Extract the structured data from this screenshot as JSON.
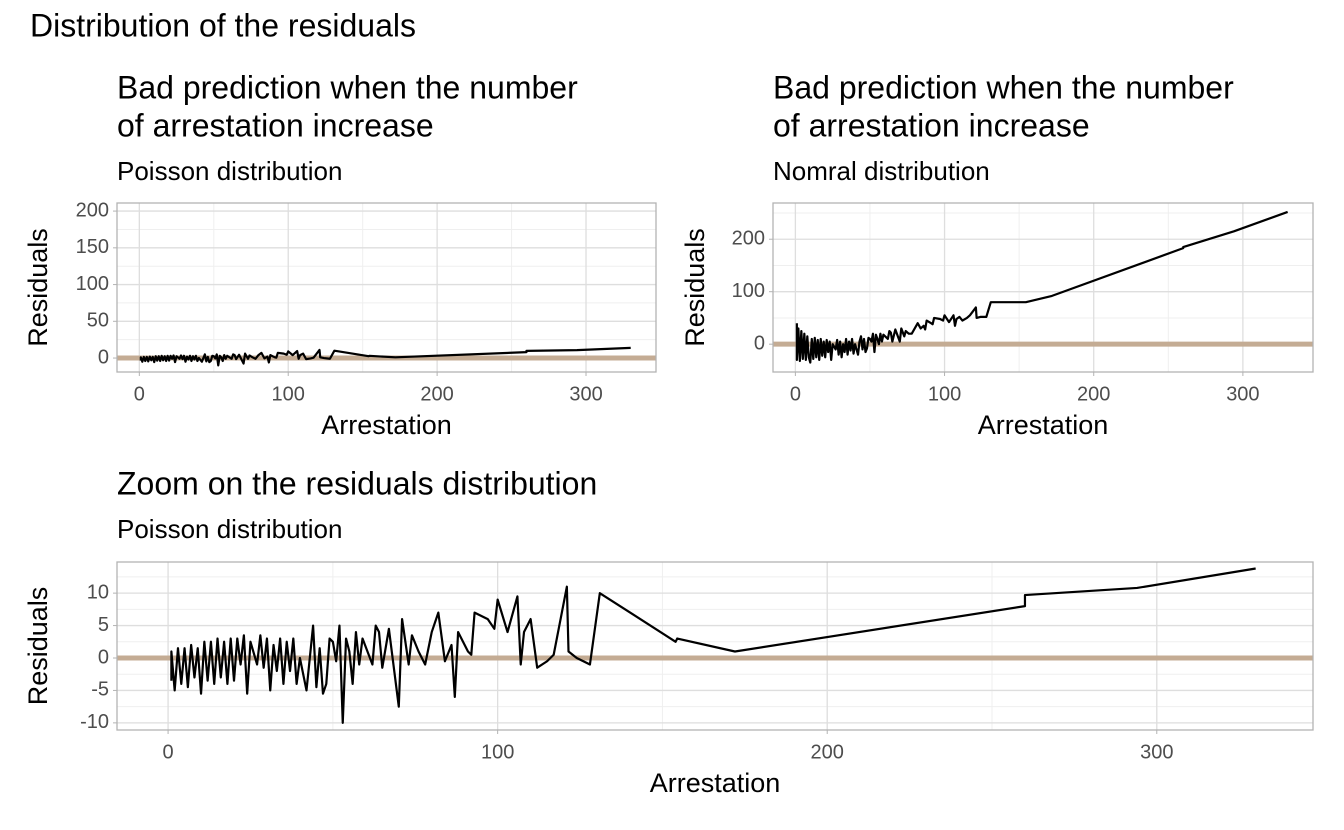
{
  "title": "Distribution of the residuals",
  "chart_data": [
    {
      "type": "line",
      "title": [
        "Bad prediction when the number",
        "of arrestation increase"
      ],
      "subtitle": "Poisson distribution",
      "xlabel": "Arrestation",
      "ylabel": "Residuals",
      "color": "#000000",
      "hline": {
        "value": 0,
        "color": "#c4ac94"
      },
      "xlim": [
        -15,
        347
      ],
      "ylim": [
        -19,
        211
      ],
      "xticks": [
        0,
        100,
        200,
        300
      ],
      "yticks": [
        0,
        50,
        100,
        150,
        200
      ],
      "minor_xticks": [
        50,
        150,
        250
      ],
      "minor_yticks": [
        25,
        75,
        125,
        175
      ],
      "grid": true,
      "x": [
        1,
        1,
        2,
        3,
        4,
        5,
        6,
        7,
        8,
        9,
        10,
        11,
        12,
        13,
        14,
        15,
        16,
        17,
        18,
        19,
        20,
        21,
        22,
        23,
        24,
        25,
        27,
        28,
        29,
        30,
        31,
        32,
        33,
        34,
        35,
        36,
        37,
        38,
        39,
        40,
        42,
        43,
        44,
        45,
        46,
        47,
        48,
        49,
        50,
        51,
        52,
        53,
        54,
        55,
        56,
        57,
        58,
        59,
        62,
        63,
        64,
        65,
        67,
        70,
        71,
        73,
        74,
        76,
        78,
        80,
        82,
        84,
        86,
        87,
        88,
        91,
        92,
        93,
        97,
        99,
        100,
        103,
        106,
        107,
        108,
        110,
        112,
        115,
        117,
        121,
        121.5,
        124,
        128,
        131,
        154,
        154.5,
        172,
        260,
        260,
        294,
        330
      ],
      "values": [
        -3.5,
        1,
        -5,
        1.5,
        -4,
        1.5,
        -4.5,
        2,
        -3,
        1.5,
        -5.5,
        2.5,
        -3.5,
        2.5,
        -4,
        3,
        -3,
        2.5,
        -4,
        3,
        -3.5,
        3,
        -1,
        3.5,
        -5.5,
        2.5,
        -1,
        3.5,
        -1.5,
        3,
        -5,
        2,
        -2,
        3,
        -4,
        2.5,
        -2,
        3,
        -4,
        0,
        -5,
        0,
        5,
        -4.5,
        1.5,
        -5.5,
        -4,
        3,
        2.5,
        -0.5,
        5,
        -10,
        3,
        1,
        -4,
        4,
        -1,
        3,
        -1,
        5,
        4,
        -1.5,
        4.5,
        -7.5,
        6,
        -1,
        3.5,
        1,
        -1,
        4,
        7,
        -0.5,
        2,
        -6,
        4,
        1,
        0.5,
        7,
        6,
        4.5,
        9,
        4,
        9.5,
        -1,
        4,
        6,
        -1.5,
        -0.5,
        0.5,
        11,
        1,
        0,
        -1,
        10,
        2.5,
        3,
        1,
        8,
        9.7,
        10.8,
        13.8
      ]
    },
    {
      "type": "line",
      "title": [
        "Bad prediction when the number",
        "of arrestation increase"
      ],
      "subtitle": "Nomral distribution",
      "xlabel": "Arrestation",
      "ylabel": "Residuals",
      "color": "#000000",
      "hline": {
        "value": 0,
        "color": "#c4ac94"
      },
      "xlim": [
        -15,
        347
      ],
      "ylim": [
        -53,
        269
      ],
      "xticks": [
        0,
        100,
        200,
        300
      ],
      "yticks": [
        0,
        100,
        200
      ],
      "minor_xticks": [
        50,
        150,
        250
      ],
      "minor_yticks": [
        50,
        150,
        250
      ],
      "grid": true,
      "x": [
        1,
        1,
        2,
        3,
        4,
        5,
        6,
        7,
        8,
        9,
        10,
        11,
        12,
        13,
        14,
        15,
        16,
        17,
        18,
        19,
        20,
        21,
        22,
        23,
        24,
        25,
        27,
        28,
        29,
        30,
        31,
        32,
        33,
        34,
        35,
        36,
        37,
        38,
        39,
        40,
        42,
        43,
        44,
        45,
        46,
        47,
        48,
        49,
        50,
        51,
        52,
        53,
        54,
        55,
        56,
        57,
        58,
        59,
        62,
        63,
        64,
        65,
        67,
        70,
        71,
        73,
        74,
        76,
        78,
        80,
        82,
        84,
        86,
        87,
        88,
        91,
        92,
        93,
        97,
        99,
        100,
        103,
        106,
        107,
        108,
        110,
        112,
        115,
        117,
        121,
        121.5,
        124,
        128,
        131,
        154,
        154.5,
        172,
        260,
        260,
        294,
        330
      ],
      "values": [
        40,
        -30,
        30,
        -32,
        25,
        -28,
        20,
        -30,
        15,
        -25,
        -35,
        10,
        -28,
        12,
        -25,
        8,
        -30,
        10,
        -22,
        5,
        -25,
        8,
        -15,
        5,
        -30,
        0,
        -10,
        8,
        -20,
        5,
        -25,
        0,
        -15,
        10,
        -20,
        5,
        -12,
        10,
        -18,
        0,
        -20,
        5,
        15,
        -10,
        10,
        -15,
        -8,
        12,
        10,
        5,
        20,
        -15,
        18,
        10,
        0,
        20,
        5,
        18,
        10,
        25,
        22,
        5,
        28,
        5,
        30,
        15,
        25,
        20,
        20,
        30,
        40,
        30,
        35,
        28,
        45,
        40,
        38,
        50,
        48,
        45,
        55,
        42,
        55,
        35,
        48,
        52,
        45,
        50,
        55,
        70,
        50,
        52,
        52,
        80,
        80,
        80,
        92,
        183,
        185,
        215,
        252
      ]
    },
    {
      "type": "line",
      "title": [
        "Zoom on the residuals distribution"
      ],
      "subtitle": "Poisson distribution",
      "xlabel": "Arrestation",
      "ylabel": "Residuals",
      "color": "#000000",
      "hline": {
        "value": 0,
        "color": "#c4ac94"
      },
      "xlim": [
        -15.5,
        347.4
      ],
      "ylim": [
        -11.1,
        14.8
      ],
      "xticks": [
        0,
        100,
        200,
        300
      ],
      "yticks": [
        -10,
        -5,
        0,
        5,
        10
      ],
      "minor_xticks": [
        50,
        150,
        250
      ],
      "minor_yticks": [
        -7.5,
        -2.5,
        2.5,
        7.5,
        12.5
      ],
      "grid": true,
      "x": [
        1,
        1,
        2,
        3,
        4,
        5,
        6,
        7,
        8,
        9,
        10,
        11,
        12,
        13,
        14,
        15,
        16,
        17,
        18,
        19,
        20,
        21,
        22,
        23,
        24,
        25,
        27,
        28,
        29,
        30,
        31,
        32,
        33,
        34,
        35,
        36,
        37,
        38,
        39,
        40,
        42,
        43,
        44,
        45,
        46,
        47,
        48,
        49,
        50,
        51,
        52,
        53,
        54,
        55,
        56,
        57,
        58,
        59,
        62,
        63,
        64,
        65,
        67,
        70,
        71,
        73,
        74,
        76,
        78,
        80,
        82,
        84,
        86,
        87,
        88,
        91,
        92,
        93,
        97,
        99,
        100,
        103,
        106,
        107,
        108,
        110,
        112,
        115,
        117,
        121,
        121.5,
        124,
        128,
        131,
        154,
        154.5,
        172,
        260,
        260,
        294,
        330
      ],
      "values": [
        -3.5,
        1,
        -5,
        1.5,
        -4,
        1.5,
        -4.5,
        2,
        -3,
        1.5,
        -5.5,
        2.5,
        -3.5,
        2.5,
        -4,
        3,
        -3,
        2.5,
        -4,
        3,
        -3.5,
        3,
        -1,
        3.5,
        -5.5,
        2.5,
        -1,
        3.5,
        -1.5,
        3,
        -5,
        2,
        -2,
        3,
        -4,
        2.5,
        -2,
        3,
        -4,
        0,
        -5,
        0,
        5,
        -4.5,
        1.5,
        -5.5,
        -4,
        3,
        2.5,
        -0.5,
        5,
        -10,
        3,
        1,
        -4,
        4,
        -1,
        3,
        -1,
        5,
        4,
        -1.5,
        4.5,
        -7.5,
        6,
        -1,
        3.5,
        1,
        -1,
        4,
        7,
        -0.5,
        2,
        -6,
        4,
        1,
        0.5,
        7,
        6,
        4.5,
        9,
        4,
        9.5,
        -1,
        4,
        6,
        -1.5,
        -0.5,
        0.5,
        11,
        1,
        0,
        -1,
        10,
        2.5,
        3,
        1,
        8,
        9.7,
        10.8,
        13.8
      ]
    }
  ]
}
